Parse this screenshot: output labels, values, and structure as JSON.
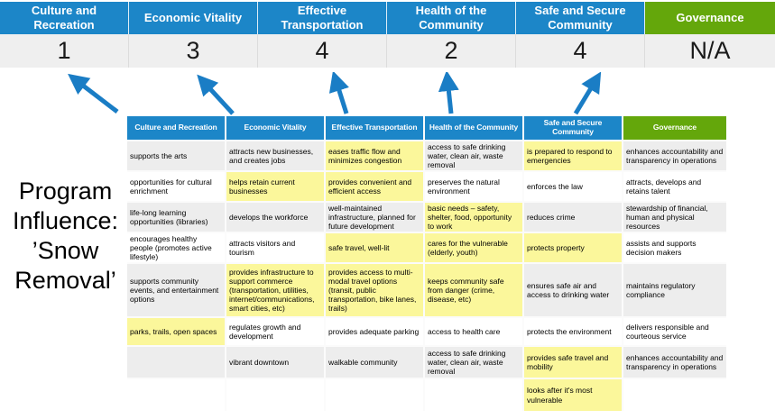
{
  "banner": {
    "score_row_bg": "#EFEFEF",
    "columns": [
      {
        "label": "Culture and Recreation",
        "score": "1",
        "color": "#1C86C8"
      },
      {
        "label": "Economic Vitality",
        "score": "3",
        "color": "#1C86C8"
      },
      {
        "label": "Effective Transportation",
        "score": "4",
        "color": "#1C86C8"
      },
      {
        "label": "Health of the Community",
        "score": "2",
        "color": "#1C86C8"
      },
      {
        "label": "Safe and Secure Community",
        "score": "4",
        "color": "#1C86C8"
      },
      {
        "label": "Governance",
        "score": "N/A",
        "color": "#64A70B"
      }
    ]
  },
  "arrows": {
    "color": "#1A7DC5",
    "count": 5
  },
  "program_influence": {
    "lines": [
      "Program",
      "Influence:",
      "’Snow",
      "Removal’"
    ]
  },
  "matrix": {
    "highlight_color": "#FBF79B",
    "band_color": "#EDEDED",
    "headers": [
      {
        "label": "Culture and Recreation",
        "color": "#1C86C8"
      },
      {
        "label": "Economic Vitality",
        "color": "#1C86C8"
      },
      {
        "label": "Effective Transportation",
        "color": "#1C86C8"
      },
      {
        "label": "Health of the Community",
        "color": "#1C86C8"
      },
      {
        "label": "Safe and Secure Community",
        "color": "#1C86C8"
      },
      {
        "label": "Governance",
        "color": "#64A70B"
      }
    ],
    "rows": [
      {
        "cells": [
          {
            "text": "supports the arts",
            "highlight": false
          },
          {
            "text": "attracts new businesses, and creates jobs",
            "highlight": false
          },
          {
            "text": "eases traffic flow and minimizes congestion",
            "highlight": true
          },
          {
            "text": "access to safe drinking water, clean air, waste removal",
            "highlight": false
          },
          {
            "text": "is prepared to respond to emergencies",
            "highlight": true
          },
          {
            "text": "enhances accountability and transparency in operations",
            "highlight": false
          }
        ]
      },
      {
        "cells": [
          {
            "text": "opportunities for cultural enrichment",
            "highlight": false
          },
          {
            "text": "helps retain current businesses",
            "highlight": true
          },
          {
            "text": "provides convenient and efficient access",
            "highlight": true
          },
          {
            "text": "preserves the natural environment",
            "highlight": false
          },
          {
            "text": "enforces the law",
            "highlight": false
          },
          {
            "text": "attracts, develops and retains talent",
            "highlight": false
          }
        ]
      },
      {
        "cells": [
          {
            "text": "life-long learning opportunities (libraries)",
            "highlight": false
          },
          {
            "text": "develops the workforce",
            "highlight": false
          },
          {
            "text": "well-maintained infrastructure, planned for future development",
            "highlight": false
          },
          {
            "text": "basic needs – safety, shelter, food, opportunity to work",
            "highlight": true
          },
          {
            "text": "reduces crime",
            "highlight": false
          },
          {
            "text": "stewardship of financial, human and physical resources",
            "highlight": false
          }
        ]
      },
      {
        "cells": [
          {
            "text": "encourages healthy people (promotes active lifestyle)",
            "highlight": false
          },
          {
            "text": "attracts visitors and tourism",
            "highlight": false
          },
          {
            "text": "safe travel, well-lit",
            "highlight": true
          },
          {
            "text": "cares for the vulnerable (elderly, youth)",
            "highlight": true
          },
          {
            "text": "protects property",
            "highlight": true
          },
          {
            "text": "assists and supports decision makers",
            "highlight": false
          }
        ]
      },
      {
        "cells": [
          {
            "text": "supports community events, and entertainment options",
            "highlight": false
          },
          {
            "text": "provides infrastructure to support commerce (transportation, utilities, internet/communications, smart cities, etc)",
            "highlight": true
          },
          {
            "text": "provides access to multi-modal travel options (transit, public transportation, bike lanes, trails)",
            "highlight": true
          },
          {
            "text": "keeps community safe from danger (crime, disease, etc)",
            "highlight": true
          },
          {
            "text": "ensures safe air and access to drinking water",
            "highlight": false
          },
          {
            "text": "maintains regulatory compliance",
            "highlight": false
          }
        ]
      },
      {
        "cells": [
          {
            "text": "parks, trails, open spaces",
            "highlight": true
          },
          {
            "text": "regulates growth and development",
            "highlight": false
          },
          {
            "text": "provides adequate parking",
            "highlight": false
          },
          {
            "text": "access to health care",
            "highlight": false
          },
          {
            "text": "protects the environment",
            "highlight": false
          },
          {
            "text": "delivers responsible and courteous service",
            "highlight": false
          }
        ]
      },
      {
        "cells": [
          {
            "text": "",
            "highlight": false
          },
          {
            "text": "vibrant downtown",
            "highlight": false
          },
          {
            "text": "walkable community",
            "highlight": false
          },
          {
            "text": "access to safe drinking water, clean air, waste removal",
            "highlight": false
          },
          {
            "text": "provides safe travel and mobility",
            "highlight": true
          },
          {
            "text": "enhances accountability and transparency in operations",
            "highlight": false
          }
        ]
      },
      {
        "cells": [
          {
            "text": "",
            "highlight": false
          },
          {
            "text": "",
            "highlight": false
          },
          {
            "text": "",
            "highlight": false
          },
          {
            "text": "",
            "highlight": false
          },
          {
            "text": "looks after it's most vulnerable",
            "highlight": true
          },
          {
            "text": "",
            "highlight": false
          }
        ]
      }
    ]
  }
}
